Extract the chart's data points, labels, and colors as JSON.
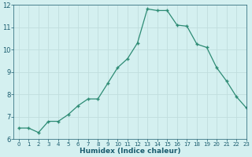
{
  "x": [
    0,
    1,
    2,
    3,
    4,
    5,
    6,
    7,
    8,
    9,
    10,
    11,
    12,
    13,
    14,
    15,
    16,
    17,
    18,
    19,
    20,
    21,
    22,
    23
  ],
  "y": [
    6.5,
    6.5,
    6.3,
    6.8,
    6.8,
    7.1,
    7.5,
    7.8,
    7.8,
    8.5,
    9.2,
    9.6,
    10.3,
    11.82,
    11.75,
    11.75,
    11.1,
    11.05,
    10.25,
    10.1,
    9.2,
    8.6,
    7.9,
    7.4
  ],
  "xlabel": "Humidex (Indice chaleur)",
  "ylim": [
    6,
    12
  ],
  "xlim": [
    -0.5,
    23
  ],
  "yticks": [
    6,
    7,
    8,
    9,
    10,
    11,
    12
  ],
  "xticks": [
    0,
    1,
    2,
    3,
    4,
    5,
    6,
    7,
    8,
    9,
    10,
    11,
    12,
    13,
    14,
    15,
    16,
    17,
    18,
    19,
    20,
    21,
    22,
    23
  ],
  "line_color": "#2d8b74",
  "marker_color": "#2d8b74",
  "bg_color": "#d4f0f0",
  "grid_color": "#c0dede",
  "axis_label_color": "#1a5c6e",
  "tick_label_color": "#1a5c6e",
  "xlabel_fontsize": 6.5,
  "xtick_fontsize": 5.0,
  "ytick_fontsize": 6.0
}
